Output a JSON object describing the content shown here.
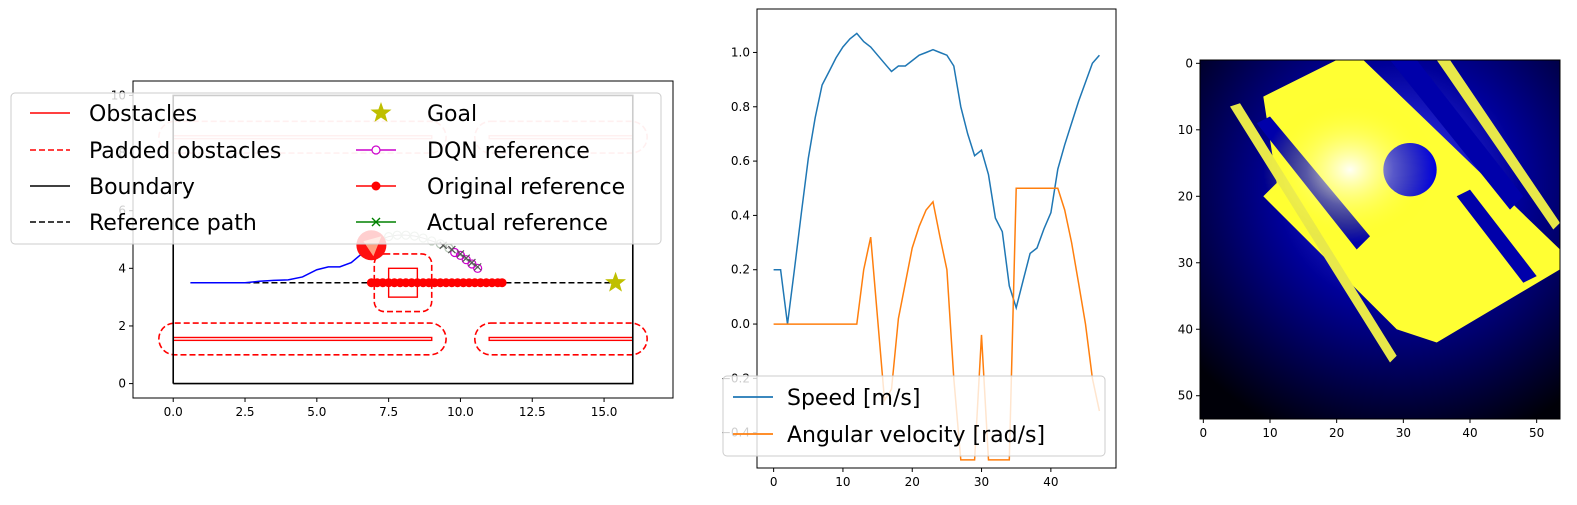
{
  "chart_data": [
    {
      "type": "line",
      "panel": "map",
      "xlim": [
        -1.4,
        17.4
      ],
      "ylim": [
        -0.5,
        10.5
      ],
      "xticks": [
        "0.0",
        "2.5",
        "5.0",
        "7.5",
        "10.0",
        "12.5",
        "15.0"
      ],
      "xtick_values": [
        0,
        2.5,
        5,
        7.5,
        10,
        12.5,
        15
      ],
      "yticks": [
        "0",
        "2",
        "4",
        "6",
        "8",
        "10"
      ],
      "ytick_values": [
        0,
        2,
        4,
        6,
        8,
        10
      ],
      "legend": {
        "placement": "upper-left",
        "entries": [
          {
            "label": "Obstacles",
            "style": "red-solid"
          },
          {
            "label": "Padded obstacles",
            "style": "red-dashed"
          },
          {
            "label": "Boundary",
            "style": "black-solid"
          },
          {
            "label": "Reference path",
            "style": "black-dashed"
          },
          {
            "label": "Goal",
            "style": "star"
          },
          {
            "label": "DQN reference",
            "style": "magenta-circle"
          },
          {
            "label": "Original reference",
            "style": "red-dot"
          },
          {
            "label": "Actual reference",
            "style": "green-x"
          }
        ]
      },
      "boundary": [
        [
          0,
          0
        ],
        [
          16,
          0
        ],
        [
          16,
          10
        ],
        [
          0,
          10
        ],
        [
          0,
          0
        ]
      ],
      "obstacles": [
        {
          "x0": 0,
          "x1": 9,
          "y0": 1.5,
          "y1": 1.6
        },
        {
          "x0": 11,
          "x1": 16,
          "y0": 1.5,
          "y1": 1.6
        },
        {
          "x0": 0,
          "x1": 9,
          "y0": 8.5,
          "y1": 8.6
        },
        {
          "x0": 11,
          "x1": 16,
          "y0": 8.5,
          "y1": 8.6
        },
        {
          "x0": 7.5,
          "x1": 8.5,
          "y0": 3.0,
          "y1": 4.0
        }
      ],
      "padded_obstacles": [
        {
          "x0": -0.5,
          "x1": 9.5,
          "y0": 1.0,
          "y1": 2.1
        },
        {
          "x0": 10.5,
          "x1": 16.5,
          "y0": 1.0,
          "y1": 2.1
        },
        {
          "x0": -0.5,
          "x1": 9.5,
          "y0": 8.0,
          "y1": 9.1
        },
        {
          "x0": 10.5,
          "x1": 16.5,
          "y0": 8.0,
          "y1": 9.1
        },
        {
          "x0": 7.0,
          "x1": 9.0,
          "y0": 2.5,
          "y1": 4.5
        }
      ],
      "reference_path": {
        "x": [
          0.6,
          15.4
        ],
        "y": [
          3.5,
          3.5
        ]
      },
      "goal": {
        "x": 15.4,
        "y": 3.5
      },
      "trajectory": {
        "x": [
          0.6,
          1.5,
          2.5,
          3.0,
          3.5,
          4.0,
          4.5,
          5.0,
          5.4,
          5.8,
          6.2,
          6.5,
          6.8,
          7.0
        ],
        "y": [
          3.5,
          3.5,
          3.5,
          3.55,
          3.58,
          3.6,
          3.7,
          3.95,
          4.05,
          4.05,
          4.2,
          4.45,
          4.7,
          4.8
        ]
      },
      "original_reference": {
        "x": [
          6.9,
          7.1,
          7.3,
          7.5,
          7.7,
          7.9,
          8.1,
          8.3,
          8.5,
          8.7,
          8.9,
          9.1,
          9.3,
          9.5,
          9.7,
          9.9,
          10.1,
          10.3,
          10.5,
          10.7,
          10.9,
          11.1,
          11.3,
          11.45
        ],
        "y": [
          3.5,
          3.5,
          3.5,
          3.5,
          3.5,
          3.5,
          3.5,
          3.5,
          3.5,
          3.5,
          3.5,
          3.5,
          3.5,
          3.5,
          3.5,
          3.5,
          3.5,
          3.5,
          3.5,
          3.5,
          3.5,
          3.5,
          3.5,
          3.5
        ]
      },
      "dqn_reference": {
        "x": [
          7.2,
          7.5,
          7.8,
          8.1,
          8.4,
          8.7,
          9.0,
          9.3,
          9.6,
          9.8,
          10.0,
          10.2,
          10.4,
          10.6
        ],
        "y": [
          5.0,
          5.1,
          5.15,
          5.15,
          5.12,
          5.05,
          4.95,
          4.85,
          4.7,
          4.55,
          4.45,
          4.3,
          4.15,
          4.0
        ]
      },
      "actual_reference": {
        "x": [
          9.4,
          9.7,
          10.0,
          10.2,
          10.4,
          10.6
        ],
        "y": [
          4.8,
          4.65,
          4.5,
          4.35,
          4.2,
          4.05
        ]
      },
      "robot": {
        "x": 6.9,
        "y": 4.8
      }
    },
    {
      "type": "line",
      "panel": "velocity",
      "xlim": [
        -2.4,
        49.4
      ],
      "ylim": [
        -0.53,
        1.16
      ],
      "xticks": [
        "0",
        "10",
        "20",
        "30",
        "40"
      ],
      "xtick_values": [
        0,
        10,
        20,
        30,
        40
      ],
      "yticks": [
        "−0.4",
        "−0.2",
        "0.0",
        "0.2",
        "0.4",
        "0.6",
        "0.8",
        "1.0"
      ],
      "ytick_values": [
        -0.4,
        -0.2,
        0.0,
        0.2,
        0.4,
        0.6,
        0.8,
        1.0
      ],
      "legend": {
        "placement": "lower-left"
      },
      "series": [
        {
          "name": "Speed [m/s]",
          "color": "#1f77b4",
          "x": [
            0,
            1,
            2,
            3,
            4,
            5,
            6,
            7,
            8,
            9,
            10,
            11,
            12,
            13,
            14,
            15,
            16,
            17,
            18,
            19,
            20,
            21,
            22,
            23,
            24,
            25,
            26,
            27,
            28,
            29,
            30,
            31,
            32,
            33,
            34,
            35,
            36,
            37,
            38,
            39,
            40,
            41,
            42,
            43,
            44,
            45,
            46,
            47
          ],
          "values": [
            0.2,
            0.2,
            0.0,
            0.2,
            0.41,
            0.61,
            0.76,
            0.88,
            0.93,
            0.98,
            1.02,
            1.05,
            1.07,
            1.04,
            1.02,
            0.99,
            0.96,
            0.93,
            0.95,
            0.95,
            0.97,
            0.99,
            1.0,
            1.01,
            1.0,
            0.99,
            0.95,
            0.8,
            0.7,
            0.62,
            0.64,
            0.55,
            0.39,
            0.34,
            0.14,
            0.06,
            0.16,
            0.26,
            0.28,
            0.35,
            0.41,
            0.57,
            0.66,
            0.74,
            0.82,
            0.89,
            0.96,
            0.99
          ]
        },
        {
          "name": "Angular velocity [rad/s]",
          "color": "#ff7f0e",
          "x": [
            0,
            1,
            2,
            3,
            4,
            5,
            6,
            7,
            8,
            9,
            10,
            11,
            12,
            13,
            14,
            15,
            16,
            17,
            18,
            19,
            20,
            21,
            22,
            23,
            24,
            25,
            26,
            27,
            28,
            29,
            30,
            31,
            32,
            33,
            34,
            35,
            36,
            37,
            38,
            39,
            40,
            41,
            42,
            43,
            44,
            45,
            46,
            47
          ],
          "values": [
            0,
            0,
            0,
            0,
            0,
            0,
            0,
            0,
            0,
            0,
            0,
            0,
            0,
            0.2,
            0.32,
            0.02,
            -0.28,
            -0.24,
            0.02,
            0.15,
            0.28,
            0.36,
            0.42,
            0.45,
            0.32,
            0.2,
            -0.2,
            -0.5,
            -0.5,
            -0.5,
            -0.04,
            -0.5,
            -0.5,
            -0.5,
            -0.5,
            0.5,
            0.5,
            0.5,
            0.5,
            0.5,
            0.5,
            0.5,
            0.42,
            0.3,
            0.15,
            0.0,
            -0.2,
            -0.32
          ]
        }
      ]
    },
    {
      "type": "heatmap",
      "panel": "local-map",
      "rows": 54,
      "cols": 54,
      "xlim": [
        -0.5,
        53.5
      ],
      "ylim": [
        53.5,
        -0.5
      ],
      "xticks": [
        "0",
        "10",
        "20",
        "30",
        "40",
        "50"
      ],
      "xtick_values": [
        0,
        10,
        20,
        30,
        40,
        50
      ],
      "yticks": [
        "0",
        "10",
        "20",
        "30",
        "40",
        "50"
      ],
      "ytick_values": [
        0,
        10,
        20,
        30,
        40,
        50
      ],
      "colors": [
        "#000000",
        "#0000ff",
        "#ffffff",
        "#ffff40"
      ]
    }
  ]
}
